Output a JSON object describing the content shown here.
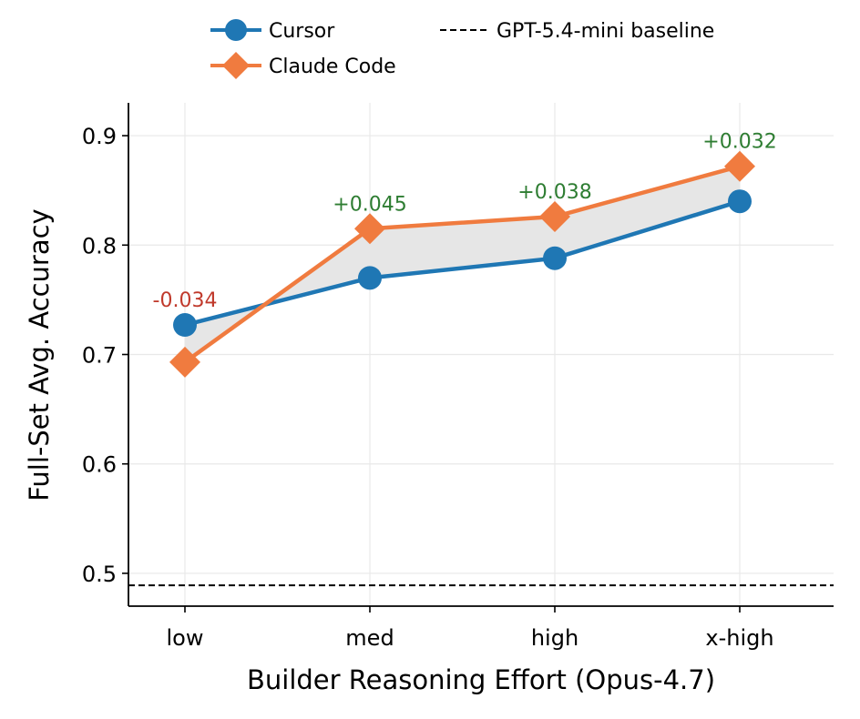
{
  "chart_data": {
    "type": "line",
    "xlabel": "Builder Reasoning Effort (Opus-4.7)",
    "ylabel": "Full-Set Avg. Accuracy",
    "categories": [
      "low",
      "med",
      "high",
      "x-high"
    ],
    "ylim": [
      0.47,
      0.93
    ],
    "yticks": [
      0.5,
      0.6,
      0.7,
      0.8,
      0.9
    ],
    "ytick_labels": [
      "0.5",
      "0.6",
      "0.7",
      "0.8",
      "0.9"
    ],
    "grid": true,
    "legend_position": "top",
    "series": [
      {
        "name": "Cursor",
        "values": [
          0.727,
          0.77,
          0.788,
          0.84
        ],
        "color": "#1f77b4",
        "marker": "circle"
      },
      {
        "name": "Claude Code",
        "values": [
          0.693,
          0.815,
          0.826,
          0.872
        ],
        "color": "#f07b3f",
        "marker": "diamond"
      }
    ],
    "baseline": {
      "name": "GPT-5.4-mini baseline",
      "value": 0.489,
      "color": "#000000",
      "style": "dashed"
    },
    "deltas": [
      {
        "label": "-0.034",
        "color": "#c0392b"
      },
      {
        "label": "+0.045",
        "color": "#2e7d32"
      },
      {
        "label": "+0.038",
        "color": "#2e7d32"
      },
      {
        "label": "+0.032",
        "color": "#2e7d32"
      }
    ],
    "fill_between_color": "#e6e6e6"
  }
}
